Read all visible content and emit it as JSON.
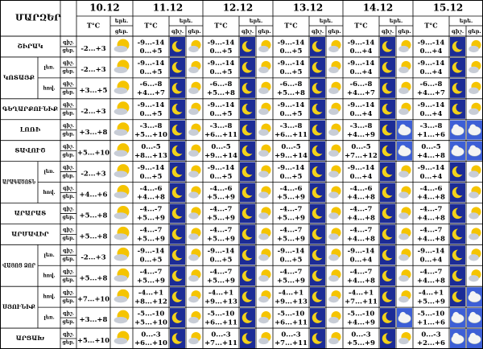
{
  "header": {
    "regions_title": "ՄԱՐԶԵՐ",
    "dates": [
      "10.12",
      "11.12",
      "12.12",
      "13.12",
      "14.12",
      "15.12"
    ],
    "temp_label": "T°C",
    "forecast_label": "երե.",
    "night_label": "գիշ.",
    "day_label": "ցեր."
  },
  "regions": [
    {
      "name": "ՇԻՐԱԿ",
      "rows": [
        {
          "today": "-2...+3",
          "forecast": [
            [
              "-9...-14",
              "0...+5"
            ],
            [
              "-9...-14",
              "0...+5"
            ],
            [
              "-9...-14",
              "0...+5"
            ],
            [
              "-9...-14",
              "0...+4"
            ],
            [
              "-9...-14",
              "0...+4"
            ]
          ]
        }
      ]
    },
    {
      "name": "ԿՈՏԱՅՔ",
      "rows": [
        {
          "zone": "լեռ.",
          "today": "-2...+3",
          "forecast": [
            [
              "-9...-14",
              "0...+5"
            ],
            [
              "-9...-14",
              "0...+5"
            ],
            [
              "-9...-14",
              "0...+5"
            ],
            [
              "-9...-14",
              "0...+4"
            ],
            [
              "-9...-14",
              "0...+4"
            ]
          ]
        },
        {
          "zone": "հով.",
          "today": "+3...+5",
          "forecast": [
            [
              "-6...-8",
              "+4...+7"
            ],
            [
              "-6...-8",
              "+5...+8"
            ],
            [
              "-6...-8",
              "+5...+8"
            ],
            [
              "-6...-8",
              "+4...+7"
            ],
            [
              "-6...-8",
              "+4...+7"
            ]
          ]
        }
      ]
    },
    {
      "name": "ԳԵՂԱՐՔՈՒՆԻՔ",
      "rows": [
        {
          "today": "-2...+3",
          "forecast": [
            [
              "-9...-14",
              "0...+5"
            ],
            [
              "-9...-14",
              "0...+5"
            ],
            [
              "-9...-14",
              "0...+5"
            ],
            [
              "-9...-14",
              "0...+4"
            ],
            [
              "-9...-14",
              "0...+4"
            ]
          ]
        }
      ]
    },
    {
      "name": "ԼՈՌԻ",
      "rows": [
        {
          "today": "+3...+8",
          "forecast": [
            [
              "-3...-8",
              "+5...+10"
            ],
            [
              "-3...-8",
              "+6...+11"
            ],
            [
              "-3...-8",
              "+6...+11"
            ],
            [
              "-3...-8",
              "+4...+9"
            ],
            [
              "-3...-8",
              "+1...+6"
            ]
          ]
        }
      ]
    },
    {
      "name": "ՏԱՎՈՒՇ",
      "rows": [
        {
          "today": "+5...+10",
          "forecast": [
            [
              "0...-5",
              "+8...+13"
            ],
            [
              "0...-5",
              "+9...+14"
            ],
            [
              "0...-5",
              "+9...+14"
            ],
            [
              "0...-5",
              "+7...+12"
            ],
            [
              "0...-5",
              "+4...+8"
            ]
          ]
        }
      ]
    },
    {
      "name": "ԱՐԱԳԱԾՈՏՆ",
      "rows": [
        {
          "zone": "լեռ.",
          "today": "-2...+3",
          "forecast": [
            [
              "-9...-14",
              "0...+5"
            ],
            [
              "-9...-14",
              "0...+5"
            ],
            [
              "-9...-14",
              "0...+5"
            ],
            [
              "-9...-14",
              "0...+4"
            ],
            [
              "-9...-14",
              "0...+4"
            ]
          ]
        },
        {
          "zone": "հով.",
          "today": "+4...+6",
          "forecast": [
            [
              "-4...-6",
              "+4...+8"
            ],
            [
              "-4...-6",
              "+5...+9"
            ],
            [
              "-4...-6",
              "+5...+9"
            ],
            [
              "-4...-6",
              "+4...+8"
            ],
            [
              "-4...-6",
              "+4...+8"
            ]
          ]
        }
      ]
    },
    {
      "name": "ԱՐԱՐԱՏ",
      "rows": [
        {
          "today": "+5...+8",
          "forecast": [
            [
              "-4...-7",
              "+5...+9"
            ],
            [
              "-4...-7",
              "+5...+9"
            ],
            [
              "-4...-7",
              "+5...+9"
            ],
            [
              "-4...-7",
              "+4...+8"
            ],
            [
              "-4...-7",
              "+4...+8"
            ]
          ]
        }
      ]
    },
    {
      "name": "ԱՐՄԱՎԻՐ",
      "rows": [
        {
          "today": "+5...+8",
          "forecast": [
            [
              "-4...-7",
              "+5...+9"
            ],
            [
              "-4...-7",
              "+5...+9"
            ],
            [
              "-4...-7",
              "+5...+9"
            ],
            [
              "-4...-7",
              "+4...+8"
            ],
            [
              "-4...-7",
              "+4...+8"
            ]
          ]
        }
      ]
    },
    {
      "name": "ՎԱՅՈՑ ՁՈՐ",
      "rows": [
        {
          "zone": "լեռ.",
          "today": "-2...+3",
          "forecast": [
            [
              "-9...-14",
              "0...+5"
            ],
            [
              "-9...-14",
              "0...+5"
            ],
            [
              "-9...-14",
              "0...+5"
            ],
            [
              "-9...-14",
              "0...+4"
            ],
            [
              "-9...-14",
              "0...+4"
            ]
          ]
        },
        {
          "zone": "հով.",
          "today": "+5...+8",
          "forecast": [
            [
              "-4...-7",
              "+5...+9"
            ],
            [
              "-4...-7",
              "+5...+9"
            ],
            [
              "-4...-7",
              "+5...+9"
            ],
            [
              "-4...-7",
              "+4...+8"
            ],
            [
              "-4...-7",
              "+4...+8"
            ]
          ]
        }
      ]
    },
    {
      "name": "ՍՅՈՒՆԻՔ",
      "rows": [
        {
          "zone": "հով.",
          "today": "+7...+10",
          "forecast": [
            [
              "-4...+1",
              "+8...+12"
            ],
            [
              "-4...+1",
              "+9...+13"
            ],
            [
              "-4...+1",
              "+9...+13"
            ],
            [
              "-4...+1",
              "+7...+11"
            ],
            [
              "-4...+1",
              "+5...+9"
            ]
          ]
        },
        {
          "zone": "լեռ.",
          "today": "+3...+8",
          "forecast": [
            [
              "-5...-10",
              "+5...+10"
            ],
            [
              "-5...-10",
              "+6...+11"
            ],
            [
              "-5...-10",
              "+6...+11"
            ],
            [
              "-5...-10",
              "+4...+9"
            ],
            [
              "-5...-10",
              "+1...+6"
            ]
          ]
        }
      ]
    },
    {
      "name": "ԱՐՑԱԽ",
      "rows": [
        {
          "today": "+5...+10",
          "forecast": [
            [
              "0...-3",
              "+6...+10"
            ],
            [
              "0...-3",
              "+7...+11"
            ],
            [
              "0...-3",
              "+7...+11"
            ],
            [
              "0...-3",
              "+5...+9"
            ],
            [
              "0...-3",
              "+2...+6"
            ]
          ]
        }
      ]
    }
  ]
}
